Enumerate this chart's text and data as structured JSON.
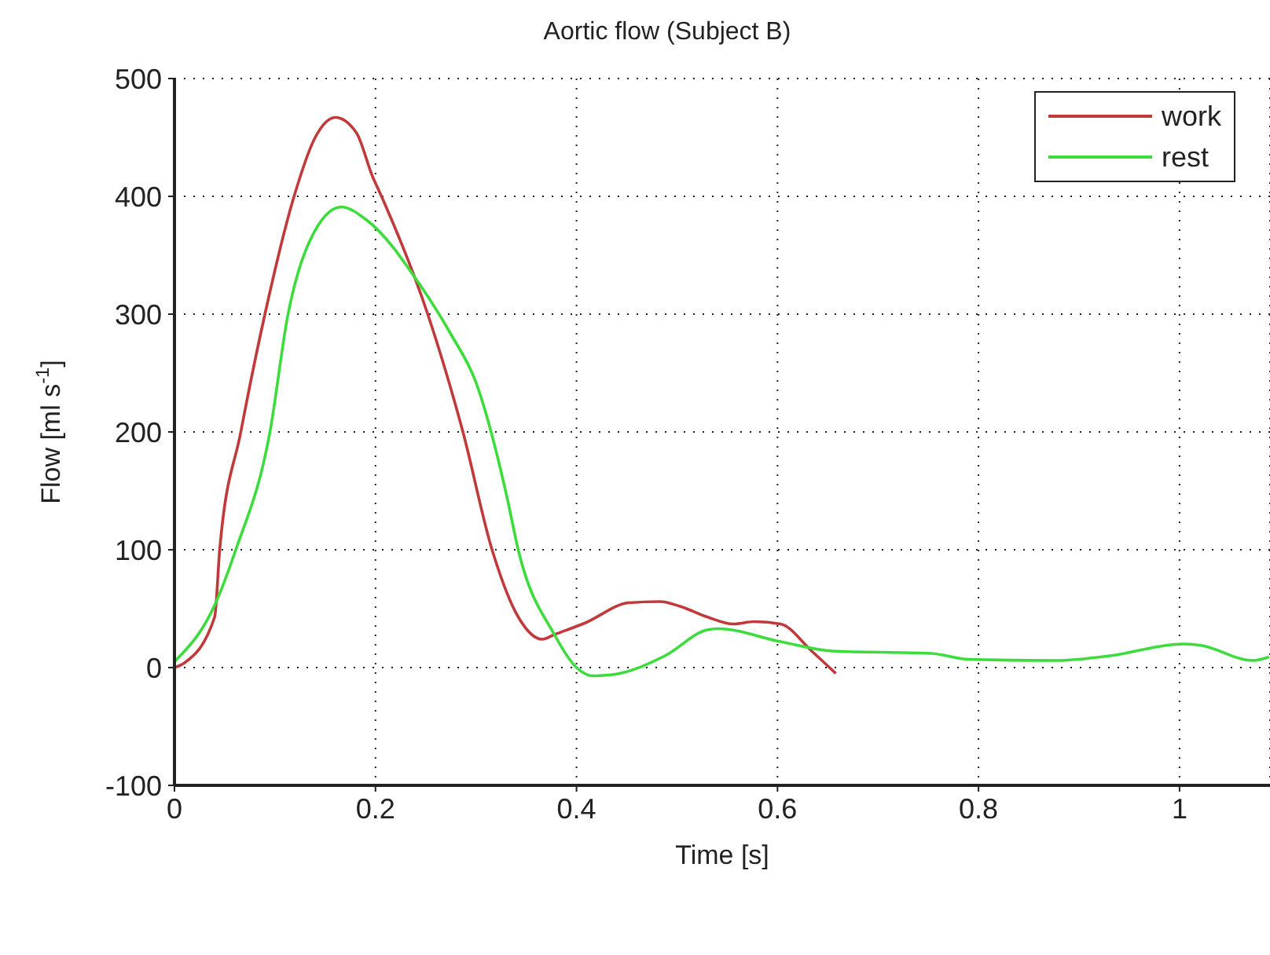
{
  "chart_data": {
    "type": "line",
    "title": "Aortic flow (Subject B)",
    "xlabel": "Time [s]",
    "ylabel": "Flow [ml s$^{-1}$]",
    "xlim": [
      0,
      1.09
    ],
    "xticks": [
      0,
      0.2,
      0.4,
      0.6,
      0.8,
      1
    ],
    "ylim": [
      -100,
      500
    ],
    "yticks": [
      -100,
      0,
      100,
      200,
      300,
      400,
      500
    ],
    "grid": true,
    "legend": "top right",
    "line_style": "solid",
    "marker": "none",
    "series": [
      {
        "name": "work",
        "color": "#c0393b",
        "x": [
          0,
          0.01,
          0.04,
          0.045,
          0.066,
          0.09,
          0.119,
          0.14,
          0.16,
          0.181,
          0.197,
          0.206,
          0.252,
          0.287,
          0.316,
          0.342,
          0.366,
          0.378,
          0.409,
          0.452,
          0.483,
          0.503,
          0.53,
          0.556,
          0.577,
          0.603,
          0.634,
          0.658
        ],
        "values": [
          0,
          4,
          43,
          100,
          200,
          300,
          400,
          450,
          467,
          454,
          417,
          400,
          300,
          200,
          100,
          43,
          24,
          28,
          38,
          55,
          56,
          52,
          43,
          37,
          39,
          37,
          14,
          -5
        ]
      },
      {
        "name": "rest",
        "color": "#3ddc3d",
        "x": [
          0,
          0.04,
          0.061,
          0.095,
          0.113,
          0.134,
          0.166,
          0.191,
          0.245,
          0.275,
          0.3,
          0.331,
          0.342,
          0.378,
          0.4,
          0.416,
          0.436,
          0.488,
          0.53,
          0.541,
          0.603,
          0.655,
          0.753,
          0.79,
          0.878,
          0.931,
          1.003,
          1.02,
          1.073,
          1.089
        ],
        "values": [
          5,
          53,
          100,
          200,
          300,
          361,
          391,
          380,
          324,
          283,
          242,
          144,
          100,
          28,
          0,
          -7,
          -6,
          10,
          32,
          33,
          22,
          14,
          12,
          7,
          6,
          10,
          20,
          19,
          6,
          9
        ]
      }
    ]
  }
}
